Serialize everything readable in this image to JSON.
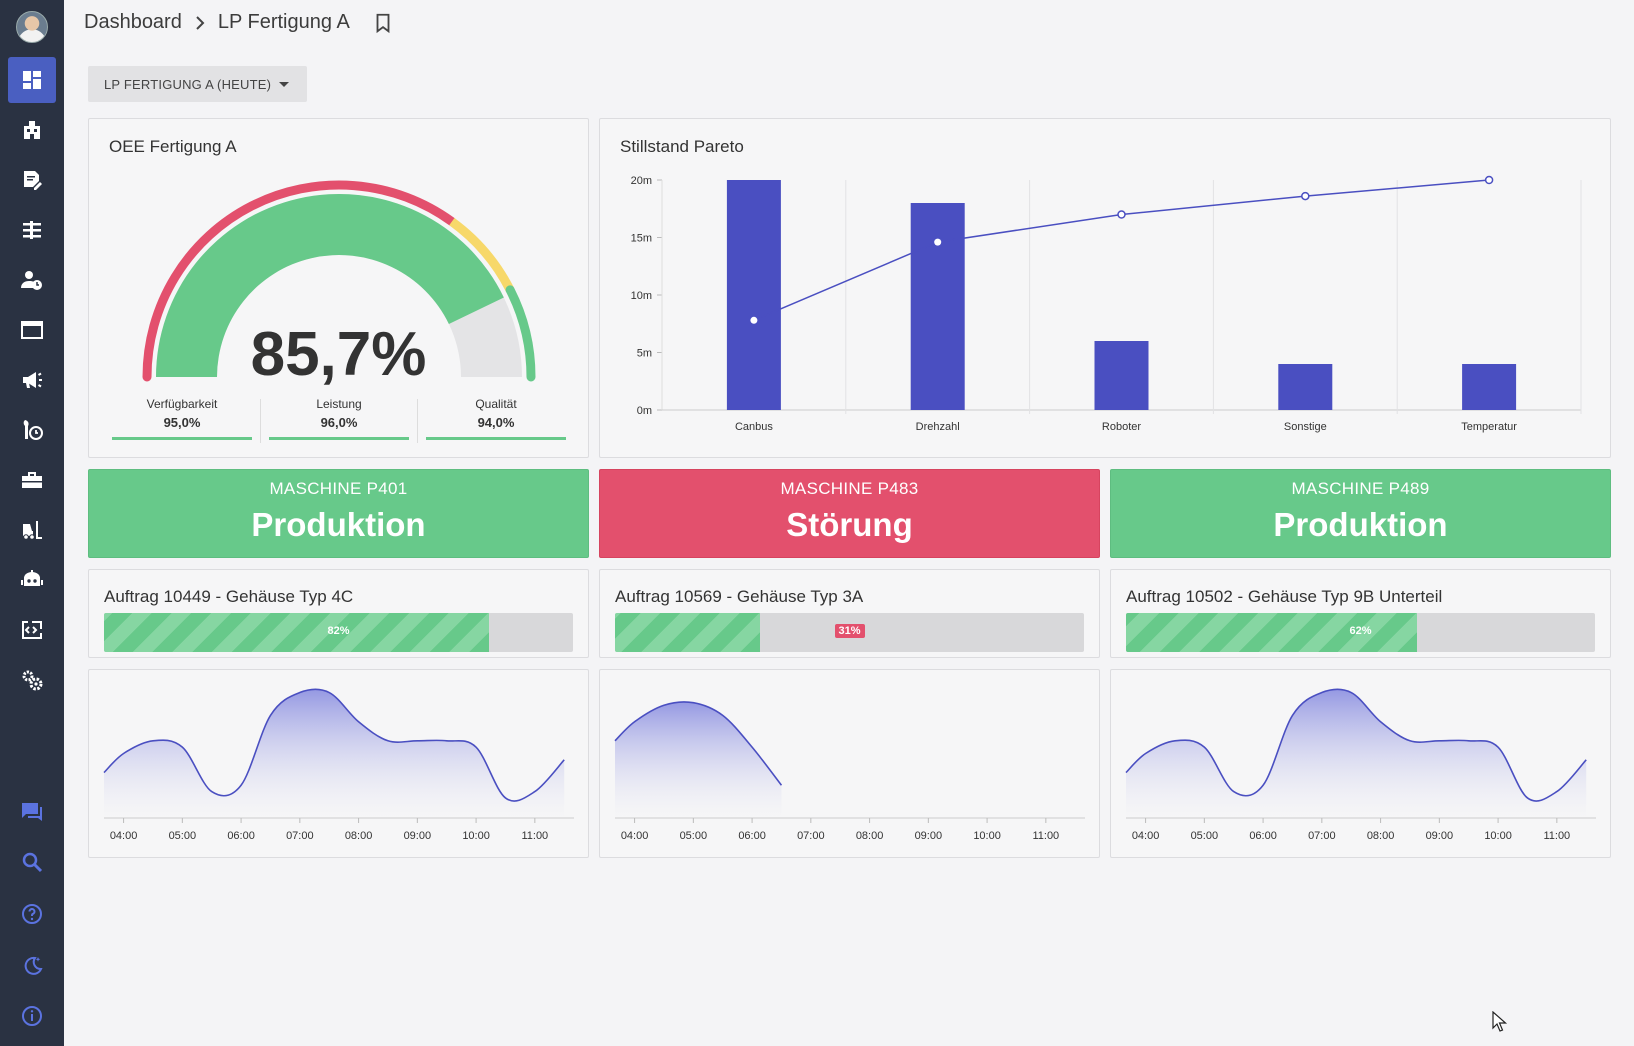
{
  "breadcrumb": {
    "root": "Dashboard",
    "current": "LP Fertigung A"
  },
  "selector": {
    "label": "LP FERTIGUNG A (HEUTE)"
  },
  "oee": {
    "title": "OEE Fertigung A",
    "value": "85,7%",
    "value_fraction": 0.857,
    "kpis": [
      {
        "label": "Verfügbarkeit",
        "value": "95,0%"
      },
      {
        "label": "Leistung",
        "value": "96,0%"
      },
      {
        "label": "Qualität",
        "value": "94,0%"
      }
    ]
  },
  "pareto": {
    "title": "Stillstand Pareto",
    "chart_data": {
      "type": "bar",
      "categories": [
        "Canbus",
        "Drehzahl",
        "Roboter",
        "Sonstige",
        "Temperatur"
      ],
      "values": [
        20,
        18,
        6,
        4,
        4
      ],
      "cumulative_line": [
        7.8,
        14.6,
        17.0,
        18.6,
        20.0
      ],
      "ylim": [
        0,
        20
      ],
      "yticks": [
        "0m",
        "5m",
        "10m",
        "15m",
        "20m"
      ],
      "colors": {
        "bar": "#4a4fc1",
        "line": "#4a4fc1"
      }
    }
  },
  "machines": [
    {
      "name": "MASCHINE P401",
      "state": "Produktion",
      "color": "#67c98a"
    },
    {
      "name": "MASCHINE P483",
      "state": "Störung",
      "color": "#e3506d"
    },
    {
      "name": "MASCHINE P489",
      "state": "Produktion",
      "color": "#67c98a"
    }
  ],
  "orders": [
    {
      "title": "Auftrag 10449 - Gehäuse Typ 4C",
      "progress": 0.82,
      "label": "82%"
    },
    {
      "title": "Auftrag 10569 - Gehäuse Typ 3A",
      "progress": 0.31,
      "label": "31%"
    },
    {
      "title": "Auftrag 10502 - Gehäuse Typ 9B Unterteil",
      "progress": 0.62,
      "label": "62%"
    }
  ],
  "chart_data": [
    {
      "type": "bar",
      "categories": [
        "Canbus",
        "Drehzahl",
        "Roboter",
        "Sonstige",
        "Temperatur"
      ],
      "values": [
        20,
        18,
        6,
        4,
        4
      ],
      "ylim": [
        0,
        20
      ]
    },
    {
      "type": "area",
      "x": [
        "03:40",
        "04:00",
        "04:30",
        "05:00",
        "05:30",
        "06:00",
        "06:30",
        "07:00",
        "07:30",
        "08:00",
        "08:30",
        "09:00",
        "09:30",
        "10:00",
        "10:30",
        "11:00",
        "11:30"
      ],
      "y": [
        0.35,
        0.5,
        0.6,
        0.55,
        0.2,
        0.25,
        0.8,
        0.98,
        0.98,
        0.75,
        0.6,
        0.6,
        0.6,
        0.55,
        0.15,
        0.2,
        0.45
      ],
      "xticks": [
        "04:00",
        "05:00",
        "06:00",
        "07:00",
        "08:00",
        "09:00",
        "10:00",
        "11:00"
      ]
    },
    {
      "type": "area",
      "x": [
        "03:40",
        "04:00",
        "04:30",
        "05:00",
        "05:30",
        "06:00",
        "06:30"
      ],
      "y": [
        0.6,
        0.75,
        0.88,
        0.9,
        0.8,
        0.55,
        0.25
      ],
      "xticks": [
        "04:00",
        "05:00",
        "06:00",
        "07:00",
        "08:00",
        "09:00",
        "10:00",
        "11:00"
      ]
    },
    {
      "type": "area",
      "x": [
        "03:40",
        "04:00",
        "04:30",
        "05:00",
        "05:30",
        "06:00",
        "06:30",
        "07:00",
        "07:30",
        "08:00",
        "08:30",
        "09:00",
        "09:30",
        "10:00",
        "10:30",
        "11:00",
        "11:30"
      ],
      "y": [
        0.35,
        0.5,
        0.6,
        0.55,
        0.2,
        0.25,
        0.8,
        0.98,
        0.98,
        0.75,
        0.6,
        0.6,
        0.6,
        0.55,
        0.15,
        0.2,
        0.45
      ],
      "xticks": [
        "04:00",
        "05:00",
        "06:00",
        "07:00",
        "08:00",
        "09:00",
        "10:00",
        "11:00"
      ]
    }
  ],
  "sidebar": {
    "items": [
      "dashboard-icon",
      "building-icon",
      "edit-document-icon",
      "hierarchy-icon",
      "user-clock-icon",
      "window-icon",
      "megaphone-icon",
      "wrench-clock-icon",
      "toolbox-icon",
      "forklift-icon",
      "robot-icon",
      "code-export-icon",
      "settings-gears-icon"
    ],
    "bottom": [
      "chat-icon",
      "search-icon",
      "help-icon",
      "night-mode-icon",
      "info-icon"
    ]
  }
}
